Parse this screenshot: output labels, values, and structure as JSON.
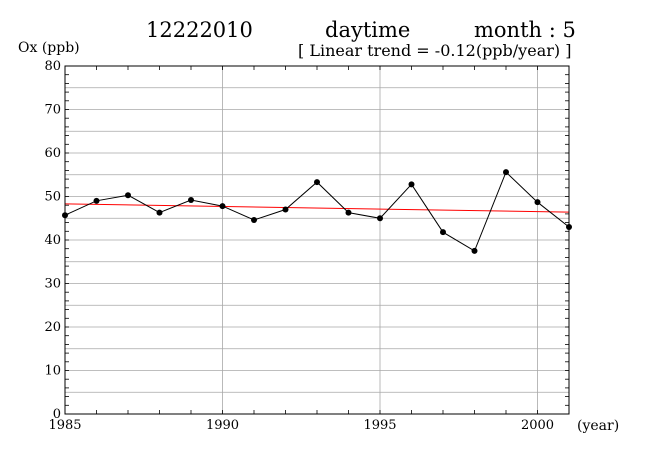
{
  "header": {
    "station": "12222010",
    "period": "daytime",
    "month": "month : 5",
    "trend": "[ Linear trend = -0.12(ppb/year) ]"
  },
  "chart_data": {
    "type": "line",
    "title": "12222010 daytime month : 5",
    "subtitle": "[ Linear trend = -0.12(ppb/year) ]",
    "ylabel": "Ox (ppb)",
    "xlabel": "(year)",
    "xlim": [
      1985,
      2001
    ],
    "ylim": [
      0,
      80
    ],
    "x_ticks": [
      1985,
      1990,
      1995,
      2000
    ],
    "y_ticks": [
      0,
      10,
      20,
      30,
      40,
      50,
      60,
      70,
      80
    ],
    "grid": true,
    "series": [
      {
        "x": [
          1985,
          1986,
          1987,
          1988,
          1989,
          1990,
          1991,
          1992,
          1993,
          1994,
          1995,
          1996,
          1997,
          1998,
          1999,
          2000,
          2001
        ],
        "values": [
          45.7,
          49.0,
          50.3,
          46.3,
          49.2,
          47.8,
          44.6,
          47.0,
          53.3,
          46.3,
          45.0,
          52.8,
          41.8,
          37.5,
          55.6,
          48.7,
          43.0
        ],
        "color": "#000000"
      }
    ],
    "trend_line": {
      "slope_ppb_per_year": -0.12,
      "x": [
        1985,
        2001
      ],
      "y": [
        48.3,
        46.4
      ],
      "color": "#ff0000"
    }
  }
}
